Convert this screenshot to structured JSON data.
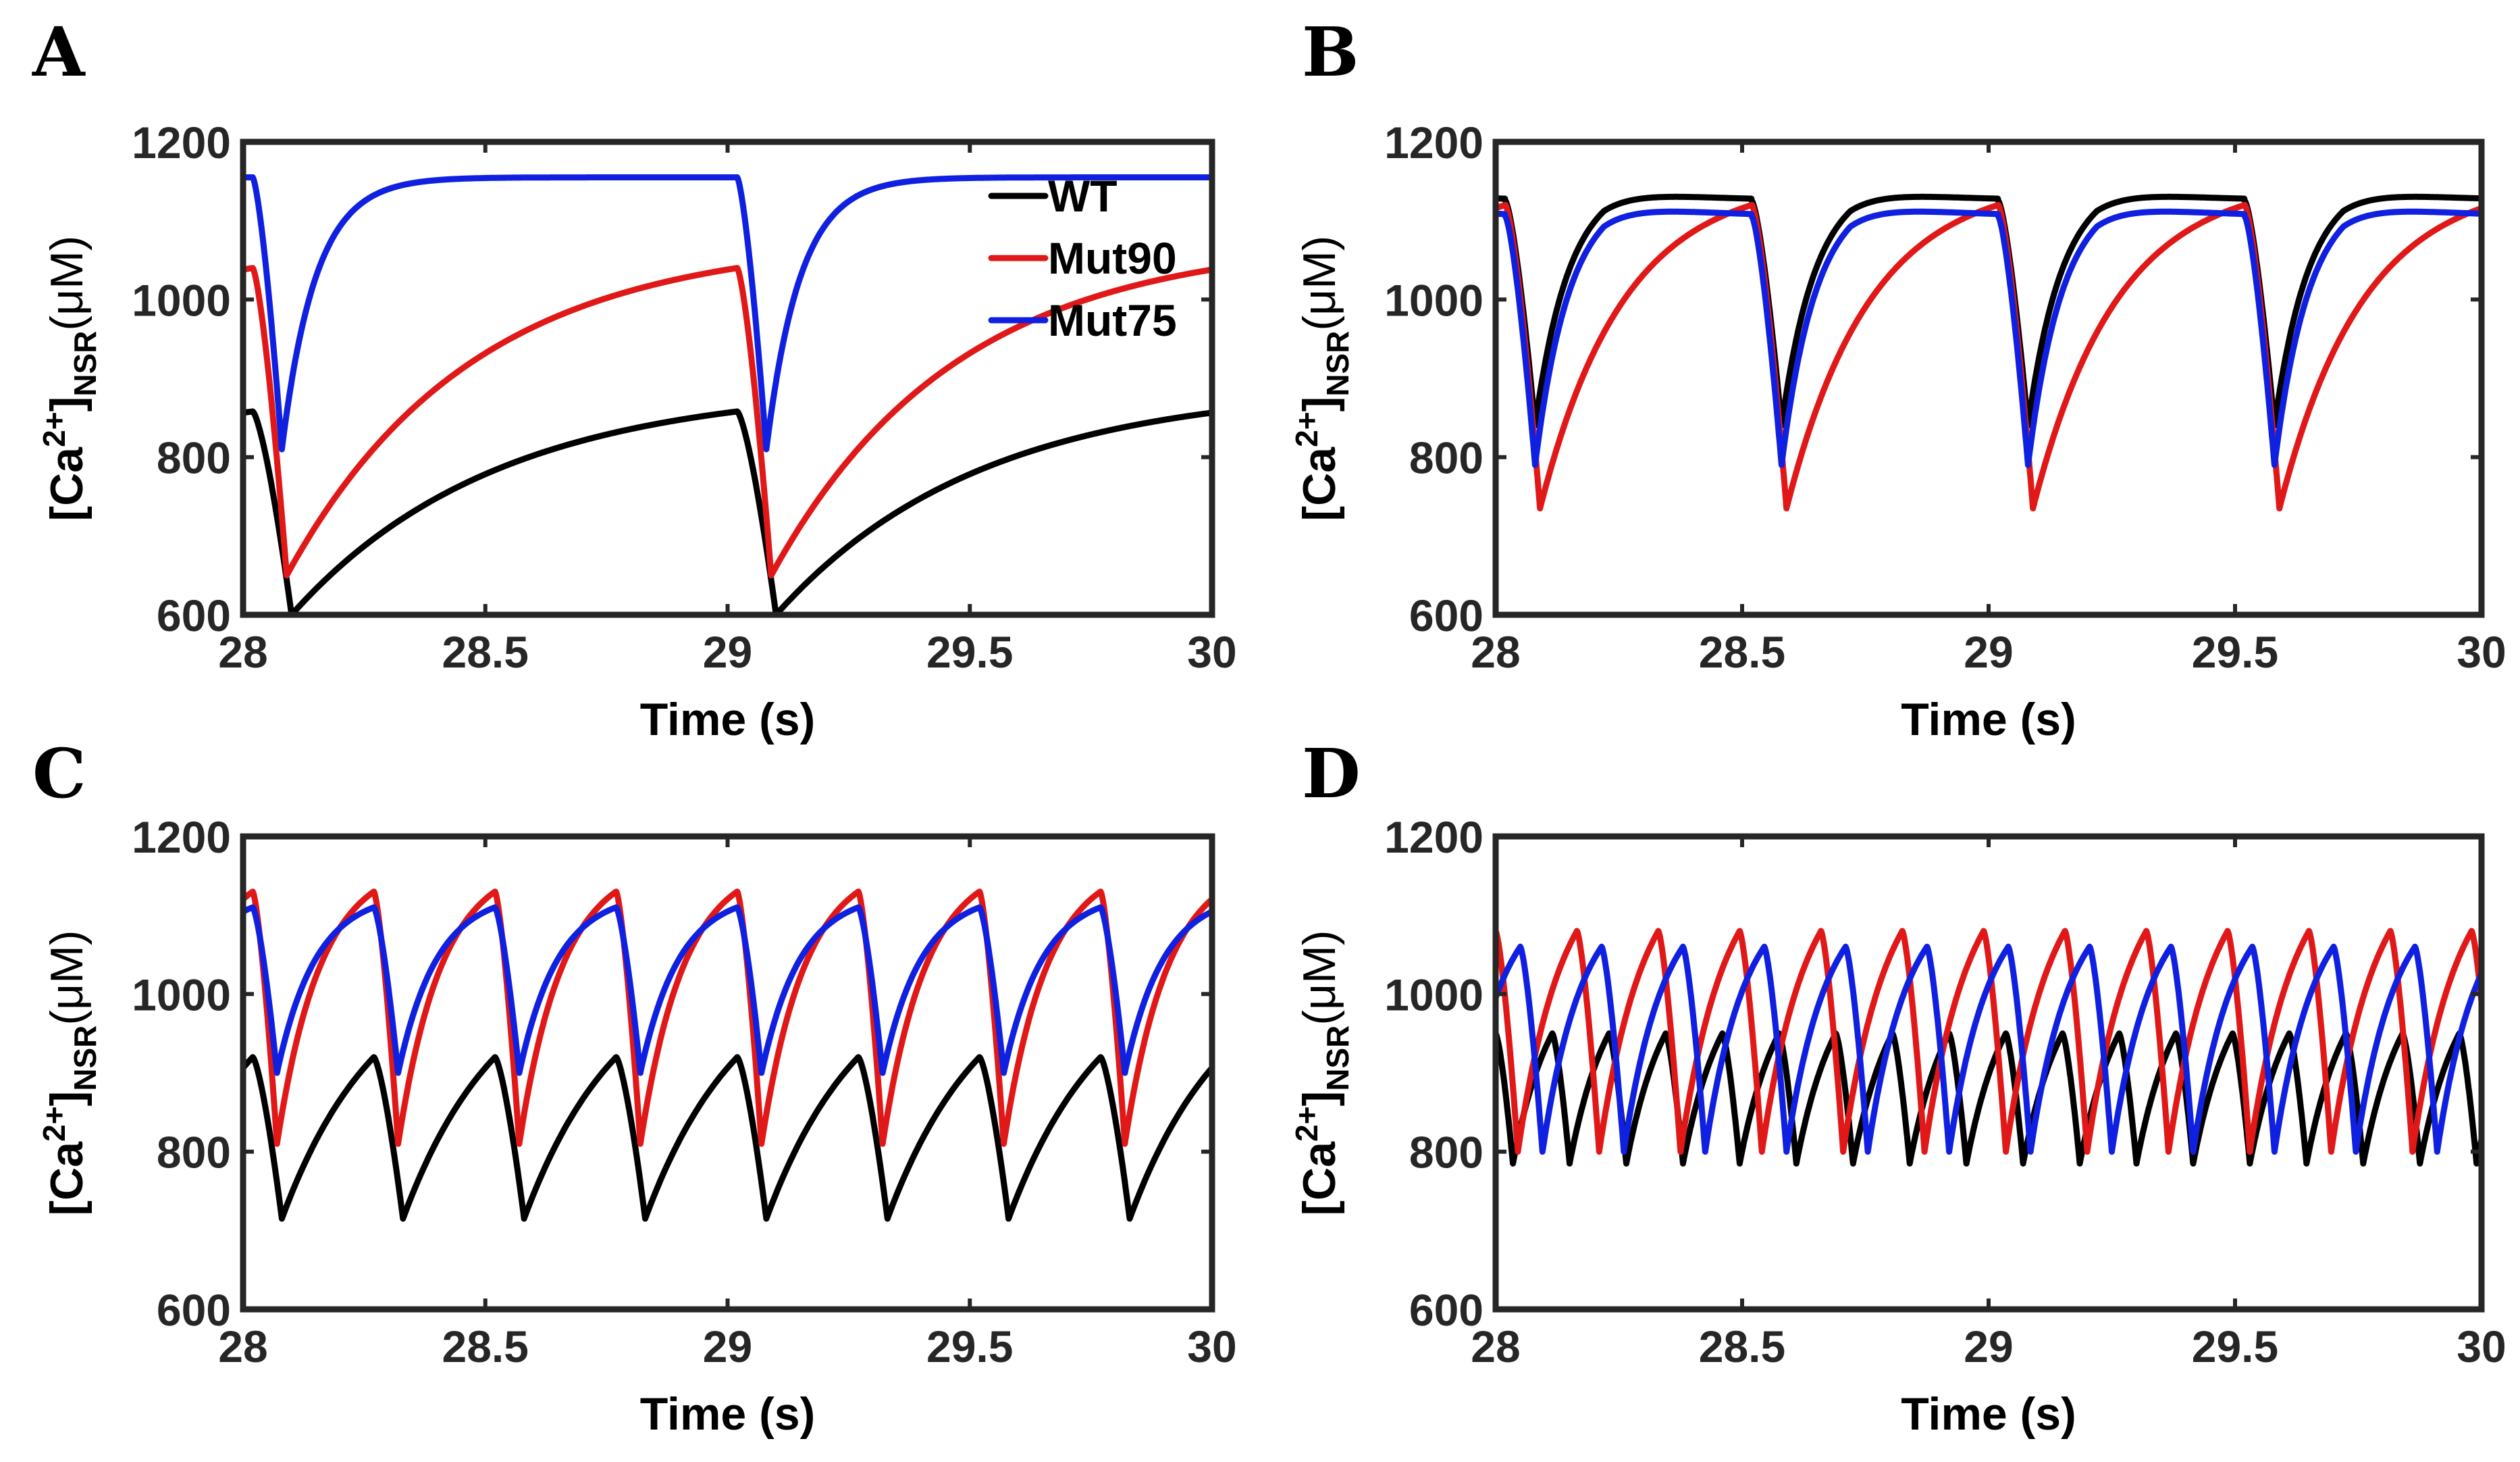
{
  "colors": {
    "WT": "#000000",
    "Mut90": "#e01818",
    "Mut75": "#1020e0",
    "frame": "#262626"
  },
  "legend": {
    "entries": [
      "WT",
      "Mut90",
      "Mut75"
    ],
    "placement": "top-right of panel A"
  },
  "chart_data": [
    {
      "panel": "A",
      "type": "line",
      "xlabel": "Time (s)",
      "ylabel": "[Ca2+]NSR (μM)",
      "ylabel_parts": {
        "open": "[Ca",
        "sup": "2+",
        "close": "]",
        "sub": "NSR",
        "unit": "(μM)"
      },
      "xlim": [
        28,
        30
      ],
      "ylim": [
        600,
        1200
      ],
      "xticks": [
        28,
        28.5,
        29,
        29.5,
        30
      ],
      "yticks": [
        600,
        800,
        1000,
        1200
      ],
      "series": [
        {
          "name": "WT",
          "period": 1.0,
          "t0": 28.02,
          "min": 600,
          "peak": 858,
          "model": "slow_refill",
          "tmin": 0.08,
          "tau": 0.42
        },
        {
          "name": "Mut90",
          "period": 1.0,
          "t0": 28.02,
          "min": 650,
          "peak": 1040,
          "model": "slow_refill",
          "tmin": 0.07,
          "tau": 0.38
        },
        {
          "name": "Mut75",
          "period": 1.0,
          "t0": 28.02,
          "min": 810,
          "peak": 1155,
          "model": "fast_refill",
          "tmin": 0.06,
          "tau": 0.07
        }
      ]
    },
    {
      "panel": "B",
      "type": "line",
      "xlabel": "Time (s)",
      "ylabel": "[Ca2+]NSR (μM)",
      "ylabel_parts": {
        "open": "[Ca",
        "sup": "2+",
        "close": "]",
        "sub": "NSR",
        "unit": "(μM)"
      },
      "xlim": [
        28,
        30
      ],
      "ylim": [
        600,
        1200
      ],
      "xticks": [
        28,
        28.5,
        29,
        29.5,
        30
      ],
      "yticks": [
        600,
        800,
        1000,
        1200
      ],
      "series": [
        {
          "name": "WT",
          "period": 0.5,
          "t0": 28.02,
          "min": 840,
          "peak": 1125,
          "overshoot": 1155,
          "model": "overshoot",
          "tmin": 0.06,
          "tau": 0.07
        },
        {
          "name": "Mut90",
          "period": 0.5,
          "t0": 28.02,
          "min": 735,
          "peak": 1120,
          "model": "slow_refill",
          "tmin": 0.07,
          "tau": 0.17
        },
        {
          "name": "Mut75",
          "period": 0.5,
          "t0": 28.02,
          "min": 790,
          "peak": 1105,
          "overshoot": 1140,
          "model": "overshoot",
          "tmin": 0.06,
          "tau": 0.07
        }
      ]
    },
    {
      "panel": "C",
      "type": "line",
      "xlabel": "Time (s)",
      "ylabel": "[Ca2+]NSR (μM)",
      "ylabel_parts": {
        "open": "[Ca",
        "sup": "2+",
        "close": "]",
        "sub": "NSR",
        "unit": "(μM)"
      },
      "xlim": [
        28,
        30
      ],
      "ylim": [
        600,
        1200
      ],
      "xticks": [
        28,
        28.5,
        29,
        29.5,
        30
      ],
      "yticks": [
        600,
        800,
        1000,
        1200
      ],
      "series": [
        {
          "name": "WT",
          "period": 0.25,
          "t0": 28.02,
          "min": 715,
          "peak": 920,
          "model": "slow_refill",
          "tmin": 0.06,
          "tau": 0.2
        },
        {
          "name": "Mut90",
          "period": 0.25,
          "t0": 28.02,
          "min": 810,
          "peak": 1130,
          "model": "slow_refill",
          "tmin": 0.05,
          "tau": 0.09
        },
        {
          "name": "Mut75",
          "period": 0.25,
          "t0": 28.02,
          "min": 900,
          "peak": 1110,
          "model": "slow_refill",
          "tmin": 0.05,
          "tau": 0.08
        }
      ]
    },
    {
      "panel": "D",
      "type": "line",
      "xlabel": "Time (s)",
      "ylabel": "[Ca2+]NSR (μM)",
      "ylabel_parts": {
        "open": "[Ca",
        "sup": "2+",
        "close": "]",
        "sub": "NSR",
        "unit": "(μM)"
      },
      "xlim": [
        28,
        30
      ],
      "ylim": [
        600,
        1200
      ],
      "xticks": [
        28,
        28.5,
        29,
        29.5,
        30
      ],
      "yticks": [
        600,
        800,
        1000,
        1200
      ],
      "series": [
        {
          "name": "WT",
          "period": 0.115,
          "t0": 28.0,
          "min": 785,
          "peak": 950,
          "model": "slow_refill",
          "tmin": 0.035,
          "tau": 0.08
        },
        {
          "name": "Mut90",
          "period": 0.165,
          "t0": 28.0,
          "min": 800,
          "peak": 1080,
          "model": "slow_refill",
          "tmin": 0.045,
          "tau": 0.09
        },
        {
          "name": "Mut75",
          "period": 0.165,
          "t0": 28.05,
          "min": 800,
          "peak": 1060,
          "model": "slow_refill",
          "tmin": 0.045,
          "tau": 0.08
        }
      ]
    }
  ]
}
